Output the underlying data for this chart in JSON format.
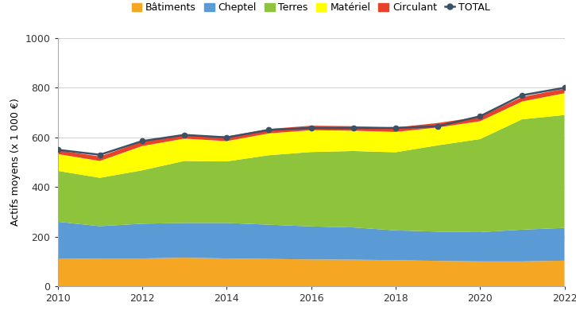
{
  "years": [
    2010,
    2011,
    2012,
    2013,
    2014,
    2015,
    2016,
    2017,
    2018,
    2019,
    2020,
    2021,
    2022
  ],
  "batiments": [
    110,
    112,
    112,
    115,
    112,
    110,
    108,
    107,
    105,
    102,
    100,
    100,
    103
  ],
  "cheptel": [
    150,
    130,
    140,
    140,
    143,
    138,
    133,
    130,
    120,
    118,
    118,
    128,
    132
  ],
  "terres": [
    205,
    195,
    215,
    250,
    248,
    280,
    300,
    308,
    315,
    348,
    375,
    445,
    455
  ],
  "materiel": [
    68,
    68,
    98,
    90,
    82,
    88,
    88,
    82,
    82,
    72,
    72,
    72,
    88
  ],
  "circulant": [
    15,
    18,
    18,
    15,
    18,
    18,
    18,
    18,
    18,
    18,
    18,
    18,
    18
  ],
  "total": [
    550,
    530,
    585,
    610,
    600,
    630,
    638,
    638,
    638,
    645,
    685,
    770,
    800
  ],
  "colors": {
    "batiments": "#F5A623",
    "cheptel": "#5B9BD5",
    "terres": "#8DC43C",
    "materiel": "#FFFF00",
    "circulant": "#E8432A"
  },
  "total_color": "#3D5166",
  "ylabel": "Actifs moyens (x 1 000 €)",
  "ylim": [
    0,
    1000
  ],
  "yticks": [
    0,
    200,
    400,
    600,
    800,
    1000
  ],
  "legend_labels": [
    "Bâtiments",
    "Cheptel",
    "Terres",
    "Matériel",
    "Circulant",
    "TOTAL"
  ],
  "background_color": "#ffffff",
  "grid_color": "#d0d0d0"
}
